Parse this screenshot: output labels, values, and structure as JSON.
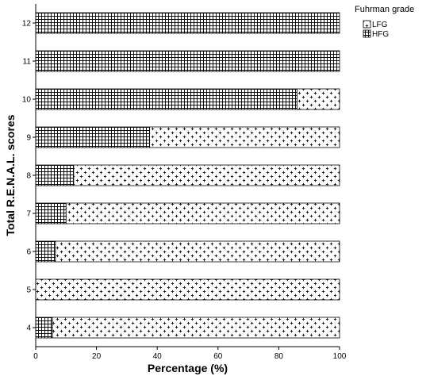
{
  "chart_data": {
    "type": "bar",
    "orientation": "horizontal",
    "stacked": true,
    "xlabel": "Percentage (%)",
    "ylabel": "Total R.E.N.A.L. scores",
    "xlim": [
      0,
      100
    ],
    "xticks": [
      "0",
      "20",
      "40",
      "60",
      "80",
      "100"
    ],
    "categories": [
      "12",
      "11",
      "10",
      "9",
      "8",
      "7",
      "6",
      "5",
      "4"
    ],
    "series": [
      {
        "name": "HFG",
        "values": [
          100,
          100,
          86,
          37.5,
          12.5,
          10,
          6.5,
          0,
          5.5
        ]
      },
      {
        "name": "LFG",
        "values": [
          0,
          0,
          14,
          62.5,
          87.5,
          90,
          93.5,
          100,
          94.5
        ]
      }
    ],
    "legend": {
      "title": "Fuhrman grade",
      "position": "top-right",
      "entries": [
        "LFG",
        "HFG"
      ]
    },
    "grid": false
  }
}
